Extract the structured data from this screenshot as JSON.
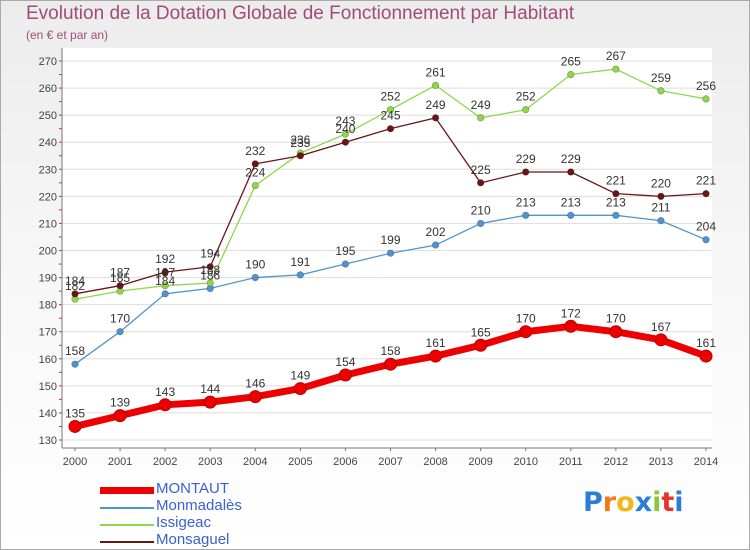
{
  "title": "Evolution de la Dotation Globale de Fonctionnement par Habitant",
  "subtitle": "(en € et par an)",
  "logo": {
    "text": "Proxiti",
    "letter_colors": [
      "#2a7fd4",
      "#f07a18",
      "#f0b818",
      "#2a7fd4",
      "#8cc63f",
      "#e8322e",
      "#2a7fd4"
    ]
  },
  "chart_data": {
    "type": "line",
    "x": [
      2000,
      2001,
      2002,
      2003,
      2004,
      2005,
      2006,
      2007,
      2008,
      2009,
      2010,
      2011,
      2012,
      2013,
      2014
    ],
    "ylim": [
      130,
      270
    ],
    "y_ticks": [
      130,
      140,
      150,
      160,
      170,
      180,
      190,
      200,
      210,
      220,
      230,
      240,
      250,
      260,
      270
    ],
    "grid": "horizontal",
    "legend_placement": "bottom-left",
    "series": [
      {
        "name": "MONTAUT",
        "color": "#ee0000",
        "values": [
          135,
          139,
          143,
          144,
          146,
          149,
          154,
          158,
          161,
          165,
          170,
          172,
          170,
          167,
          161
        ]
      },
      {
        "name": "Monmadalès",
        "color": "#4f93d0",
        "values": [
          158,
          170,
          184,
          186,
          190,
          191,
          195,
          199,
          202,
          210,
          213,
          213,
          213,
          211,
          204
        ]
      },
      {
        "name": "Issigeac",
        "color": "#8fd64a",
        "values": [
          182,
          185,
          187,
          188,
          224,
          236,
          243,
          252,
          261,
          249,
          252,
          265,
          267,
          259,
          256
        ]
      },
      {
        "name": "Monsaguel",
        "color": "#6b1515",
        "values": [
          184,
          187,
          192,
          194,
          232,
          235,
          240,
          245,
          249,
          225,
          229,
          229,
          221,
          220,
          221
        ]
      }
    ]
  }
}
